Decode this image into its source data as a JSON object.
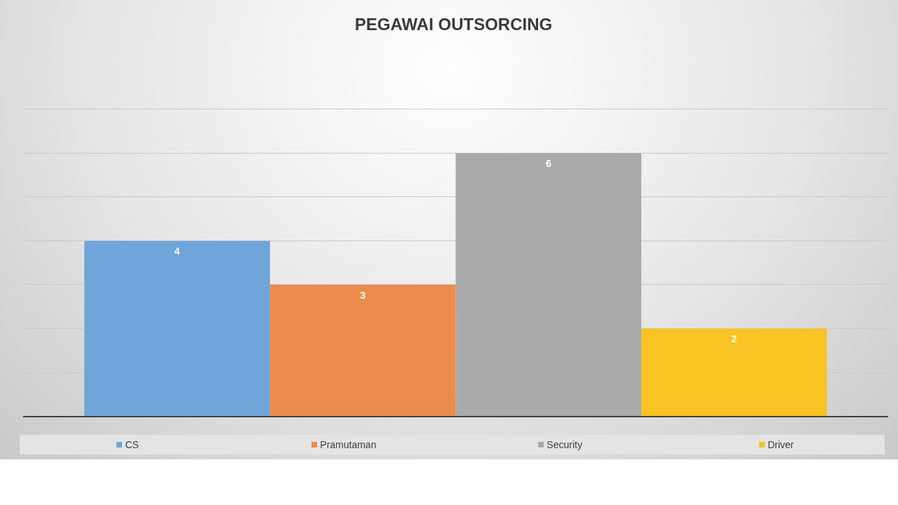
{
  "chart_data": {
    "type": "bar",
    "title": "PEGAWAI OUTSORCING",
    "categories": [
      null
    ],
    "series": [
      {
        "name": "CS",
        "color": "#6fa5d8",
        "values": [
          4
        ]
      },
      {
        "name": "Pramutaman",
        "color": "#ec8c4c",
        "values": [
          3
        ]
      },
      {
        "name": "Security",
        "color": "#ababab",
        "values": [
          6
        ]
      },
      {
        "name": "Driver",
        "color": "#f8c323",
        "values": [
          2
        ]
      }
    ],
    "ylim": [
      0,
      7
    ],
    "yticks": [
      {
        "value": 0,
        "label": null
      },
      {
        "value": 1,
        "label": null
      },
      {
        "value": 2,
        "label": null
      },
      {
        "value": 3,
        "label": null
      },
      {
        "value": 4,
        "label": null
      },
      {
        "value": 5,
        "label": null
      },
      {
        "value": 6,
        "label": null
      },
      {
        "value": 7,
        "label": null
      }
    ],
    "grid": "y",
    "legend": "bottom",
    "data_labels": true
  }
}
